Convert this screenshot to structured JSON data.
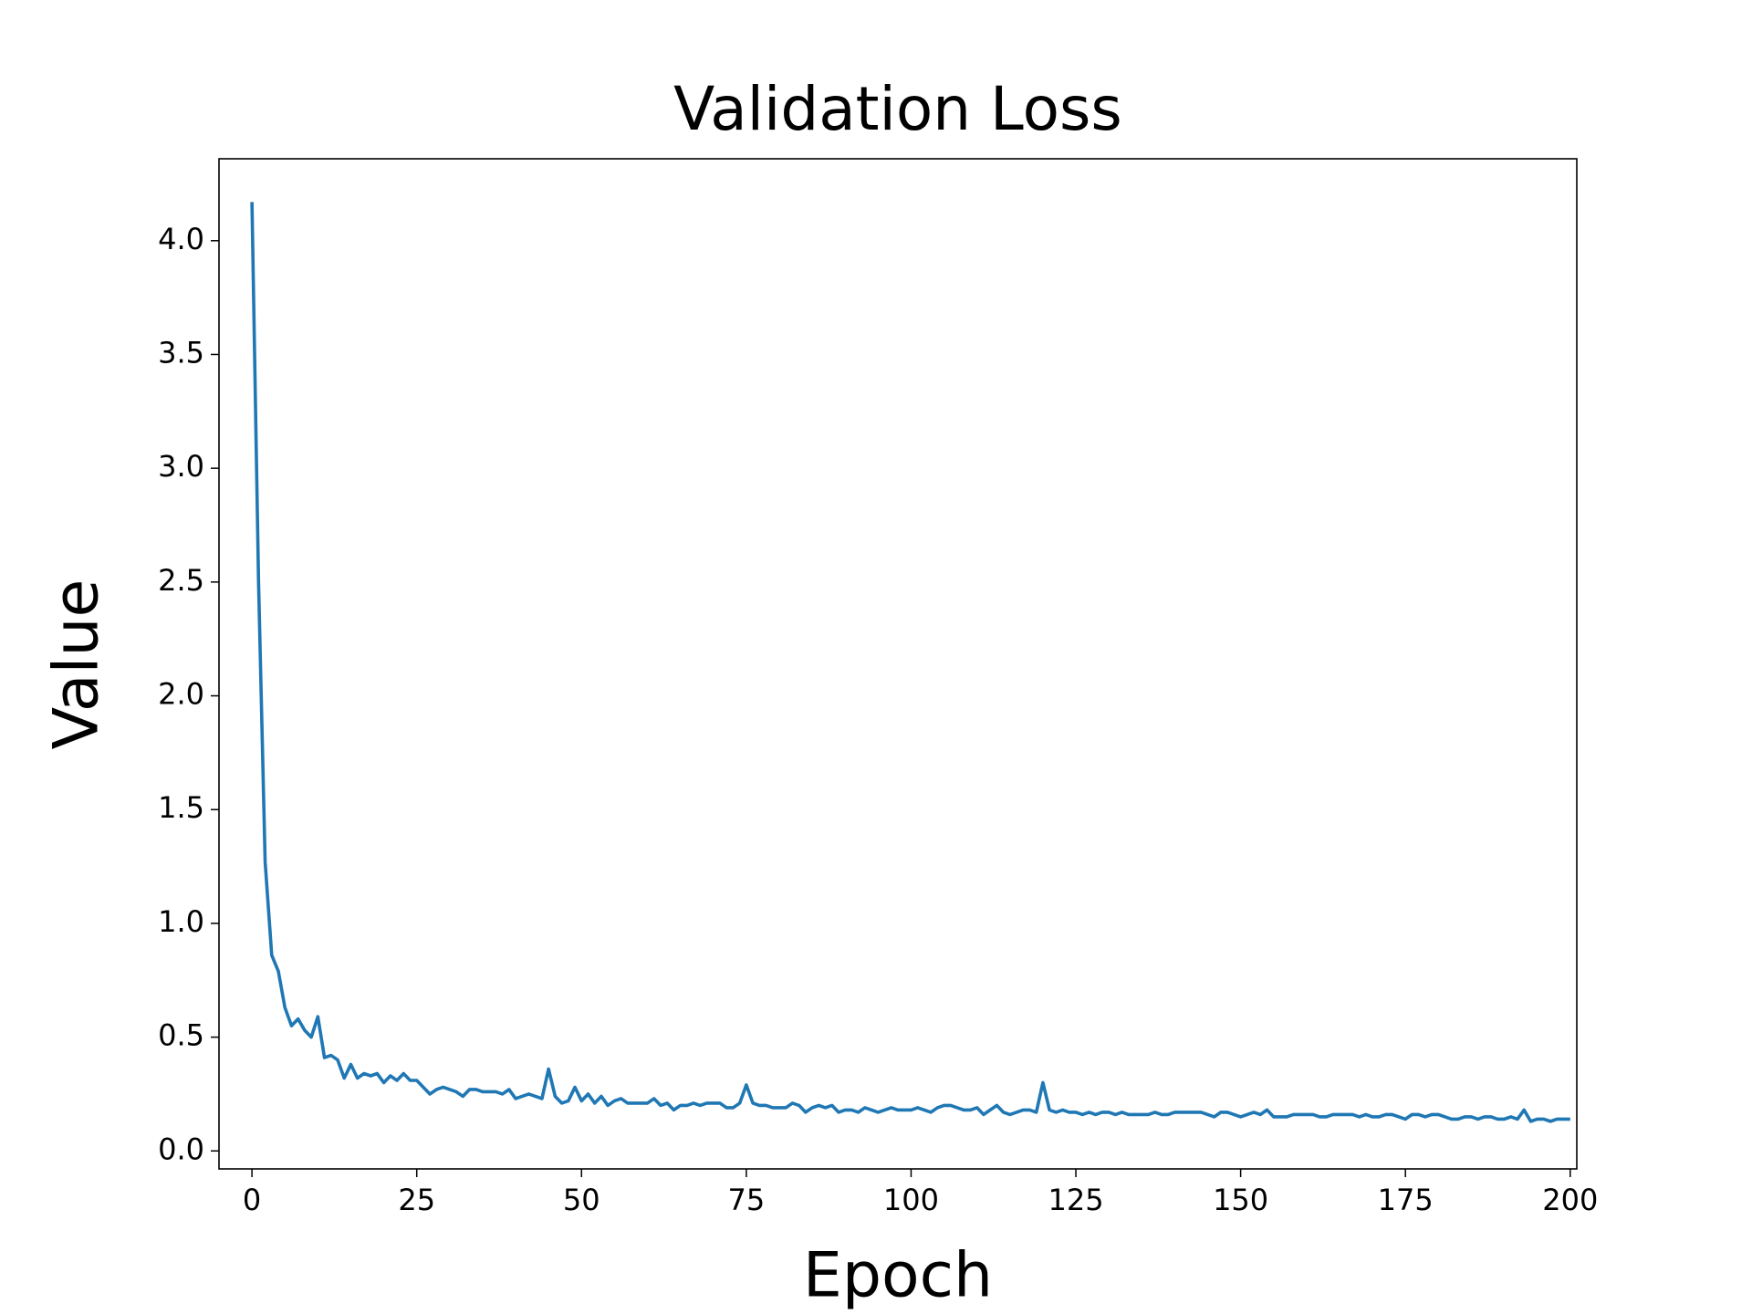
{
  "chart_data": {
    "type": "line",
    "title": "Validation Loss",
    "xlabel": "Epoch",
    "ylabel": "Value",
    "color": "#1f77b4",
    "x": [
      0,
      1,
      2,
      3,
      4,
      5,
      6,
      7,
      8,
      9,
      10,
      11,
      12,
      13,
      14,
      15,
      16,
      17,
      18,
      19,
      20,
      21,
      22,
      23,
      24,
      25,
      26,
      27,
      28,
      29,
      30,
      31,
      32,
      33,
      34,
      35,
      36,
      37,
      38,
      39,
      40,
      41,
      42,
      43,
      44,
      45,
      46,
      47,
      48,
      49,
      50,
      51,
      52,
      53,
      54,
      55,
      56,
      57,
      58,
      59,
      60,
      61,
      62,
      63,
      64,
      65,
      66,
      67,
      68,
      69,
      70,
      71,
      72,
      73,
      74,
      75,
      76,
      77,
      78,
      79,
      80,
      81,
      82,
      83,
      84,
      85,
      86,
      87,
      88,
      89,
      90,
      91,
      92,
      93,
      94,
      95,
      96,
      97,
      98,
      99,
      100,
      101,
      102,
      103,
      104,
      105,
      106,
      107,
      108,
      109,
      110,
      111,
      112,
      113,
      114,
      115,
      116,
      117,
      118,
      119,
      120,
      121,
      122,
      123,
      124,
      125,
      126,
      127,
      128,
      129,
      130,
      131,
      132,
      133,
      134,
      135,
      136,
      137,
      138,
      139,
      140,
      141,
      142,
      143,
      144,
      145,
      146,
      147,
      148,
      149,
      150,
      151,
      152,
      153,
      154,
      155,
      156,
      157,
      158,
      159,
      160,
      161,
      162,
      163,
      164,
      165,
      166,
      167,
      168,
      169,
      170,
      171,
      172,
      173,
      174,
      175,
      176,
      177,
      178,
      179,
      180,
      181,
      182,
      183,
      184,
      185,
      186,
      187,
      188,
      189,
      190,
      191,
      192,
      193,
      194,
      195,
      196,
      197,
      198,
      199,
      200
    ],
    "values": [
      4.17,
      2.5,
      1.27,
      0.86,
      0.79,
      0.63,
      0.55,
      0.58,
      0.53,
      0.5,
      0.59,
      0.41,
      0.42,
      0.4,
      0.32,
      0.38,
      0.32,
      0.34,
      0.33,
      0.34,
      0.3,
      0.33,
      0.31,
      0.34,
      0.31,
      0.31,
      0.28,
      0.25,
      0.27,
      0.28,
      0.27,
      0.26,
      0.24,
      0.27,
      0.27,
      0.26,
      0.26,
      0.26,
      0.25,
      0.27,
      0.23,
      0.24,
      0.25,
      0.24,
      0.23,
      0.36,
      0.24,
      0.21,
      0.22,
      0.28,
      0.22,
      0.25,
      0.21,
      0.24,
      0.2,
      0.22,
      0.23,
      0.21,
      0.21,
      0.21,
      0.21,
      0.23,
      0.2,
      0.21,
      0.18,
      0.2,
      0.2,
      0.21,
      0.2,
      0.21,
      0.21,
      0.21,
      0.19,
      0.19,
      0.21,
      0.29,
      0.21,
      0.2,
      0.2,
      0.19,
      0.19,
      0.19,
      0.21,
      0.2,
      0.17,
      0.19,
      0.2,
      0.19,
      0.2,
      0.17,
      0.18,
      0.18,
      0.17,
      0.19,
      0.18,
      0.17,
      0.18,
      0.19,
      0.18,
      0.18,
      0.18,
      0.19,
      0.18,
      0.17,
      0.19,
      0.2,
      0.2,
      0.19,
      0.18,
      0.18,
      0.19,
      0.16,
      0.18,
      0.2,
      0.17,
      0.16,
      0.17,
      0.18,
      0.18,
      0.17,
      0.3,
      0.18,
      0.17,
      0.18,
      0.17,
      0.17,
      0.16,
      0.17,
      0.16,
      0.17,
      0.17,
      0.16,
      0.17,
      0.16,
      0.16,
      0.16,
      0.16,
      0.17,
      0.16,
      0.16,
      0.17,
      0.17,
      0.17,
      0.17,
      0.17,
      0.16,
      0.15,
      0.17,
      0.17,
      0.16,
      0.15,
      0.16,
      0.17,
      0.16,
      0.18,
      0.15,
      0.15,
      0.15,
      0.16,
      0.16,
      0.16,
      0.16,
      0.15,
      0.15,
      0.16,
      0.16,
      0.16,
      0.16,
      0.15,
      0.16,
      0.15,
      0.15,
      0.16,
      0.16,
      0.15,
      0.14,
      0.16,
      0.16,
      0.15,
      0.16,
      0.16,
      0.15,
      0.14,
      0.14,
      0.15,
      0.15,
      0.14,
      0.15,
      0.15,
      0.14,
      0.14,
      0.15,
      0.14,
      0.18,
      0.13,
      0.14,
      0.14,
      0.13,
      0.14,
      0.14,
      0.14
    ],
    "xlim": [
      -5,
      201
    ],
    "ylim": [
      -0.079,
      4.36
    ],
    "xticks": [
      0,
      25,
      50,
      75,
      100,
      125,
      150,
      175,
      200
    ],
    "yticks": [
      {
        "value": 0,
        "label": "0.0"
      },
      0.5,
      {
        "value": 1,
        "label": "1.0"
      },
      1.5,
      {
        "value": 2,
        "label": "2.0"
      },
      2.5,
      {
        "value": 3,
        "label": "3.0"
      },
      3.5,
      {
        "value": 4,
        "label": "4.0"
      }
    ]
  }
}
